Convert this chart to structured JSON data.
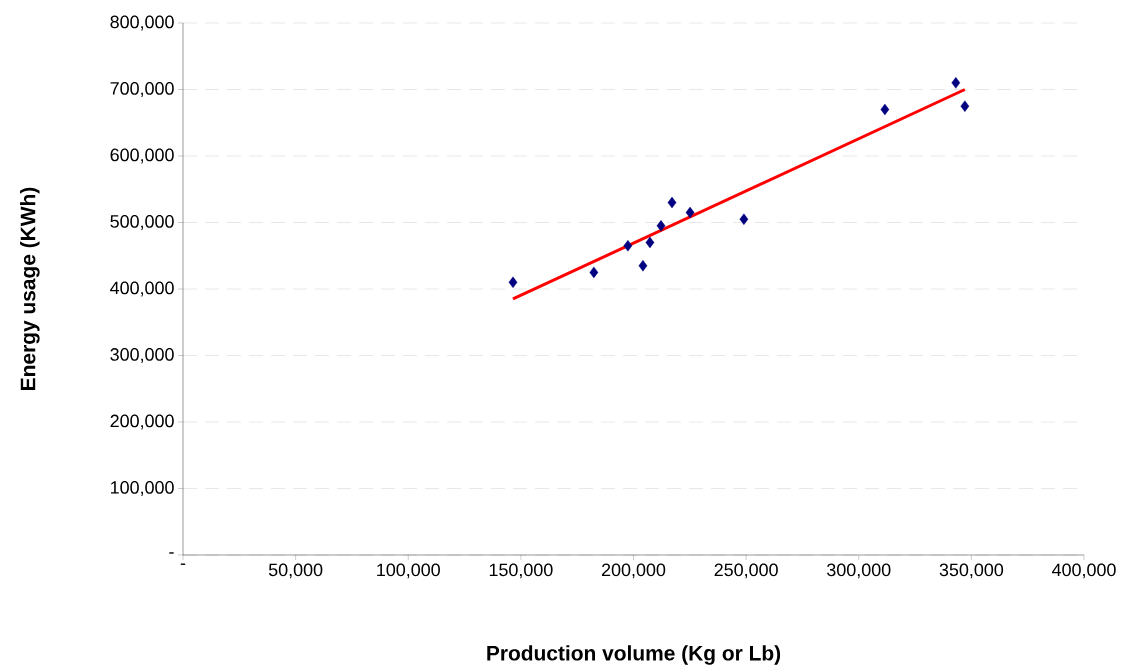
{
  "chart_data": {
    "type": "scatter",
    "xlabel": "Production volume (Kg or Lb)",
    "ylabel": "Energy usage (KWh)",
    "xlim": [
      0,
      400000
    ],
    "ylim": [
      0,
      800000
    ],
    "xticks": [
      {
        "value": 0,
        "label": "-"
      },
      {
        "value": 50000,
        "label": "50,000"
      },
      {
        "value": 100000,
        "label": "100,000"
      },
      {
        "value": 150000,
        "label": "150,000"
      },
      {
        "value": 200000,
        "label": "200,000"
      },
      {
        "value": 250000,
        "label": "250,000"
      },
      {
        "value": 300000,
        "label": "300,000"
      },
      {
        "value": 350000,
        "label": "350,000"
      },
      {
        "value": 400000,
        "label": "400,000"
      }
    ],
    "yticks": [
      {
        "value": 0,
        "label": "-"
      },
      {
        "value": 100000,
        "label": "100,000"
      },
      {
        "value": 200000,
        "label": "200,000"
      },
      {
        "value": 300000,
        "label": "300,000"
      },
      {
        "value": 400000,
        "label": "400,000"
      },
      {
        "value": 500000,
        "label": "500,000"
      },
      {
        "value": 600000,
        "label": "600,000"
      },
      {
        "value": 700000,
        "label": "700,000"
      },
      {
        "value": 800000,
        "label": "800,000"
      }
    ],
    "grid": "y",
    "marker": "diamond",
    "series": [
      {
        "color": "#000080",
        "x": [
          146500,
          182400,
          197500,
          204200,
          207300,
          212200,
          217100,
          225100,
          249000,
          311600,
          343100,
          347100
        ],
        "values": [
          410000,
          425000,
          465000,
          435000,
          470000,
          495000,
          530000,
          515000,
          505000,
          670000,
          710000,
          675000
        ]
      },
      {
        "type": "line",
        "color": "#ff0000",
        "marker": "none",
        "x": [
          146500,
          347100
        ],
        "values": [
          385000,
          700000
        ]
      }
    ]
  }
}
